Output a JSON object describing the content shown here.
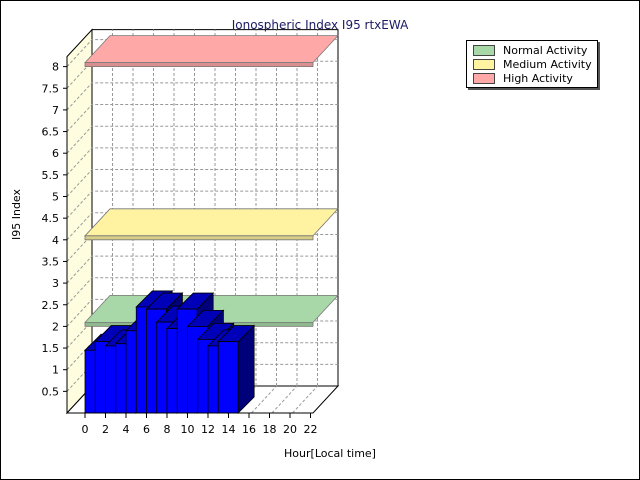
{
  "chart_data": {
    "type": "bar",
    "title": "Ionospheric Index I95 rtxEWA",
    "xlabel": "Hour[Local time]",
    "ylabel": "I95 Index",
    "x_ticks": [
      "0",
      "2",
      "4",
      "6",
      "8",
      "10",
      "12",
      "14",
      "16",
      "18",
      "20",
      "22"
    ],
    "y_ticks": [
      "0.5",
      "1",
      "1.5",
      "2",
      "2.5",
      "3",
      "3.5",
      "4",
      "4.5",
      "5",
      "5.5",
      "6",
      "6.5",
      "7",
      "7.5",
      "8"
    ],
    "ylim": [
      0,
      8
    ],
    "xlim": [
      0,
      24
    ],
    "grid": true,
    "legend_position": "top-right",
    "hours": [
      0,
      1,
      2,
      3,
      4,
      5,
      6,
      7,
      8,
      9,
      10,
      11,
      12,
      13
    ],
    "values": [
      1.45,
      1.65,
      1.55,
      1.6,
      1.9,
      2.45,
      2.4,
      2.1,
      1.95,
      2.4,
      2.0,
      1.7,
      1.55,
      1.65
    ],
    "bar_color": "#0000ff",
    "bands": [
      {
        "name": "Normal Activity",
        "value": 2.0,
        "color": "#a8d8a8"
      },
      {
        "name": "Medium Activity",
        "value": 4.0,
        "color": "#fff2a0"
      },
      {
        "name": "High Activity",
        "value": 8.0,
        "color": "#ffa8a8"
      }
    ]
  }
}
